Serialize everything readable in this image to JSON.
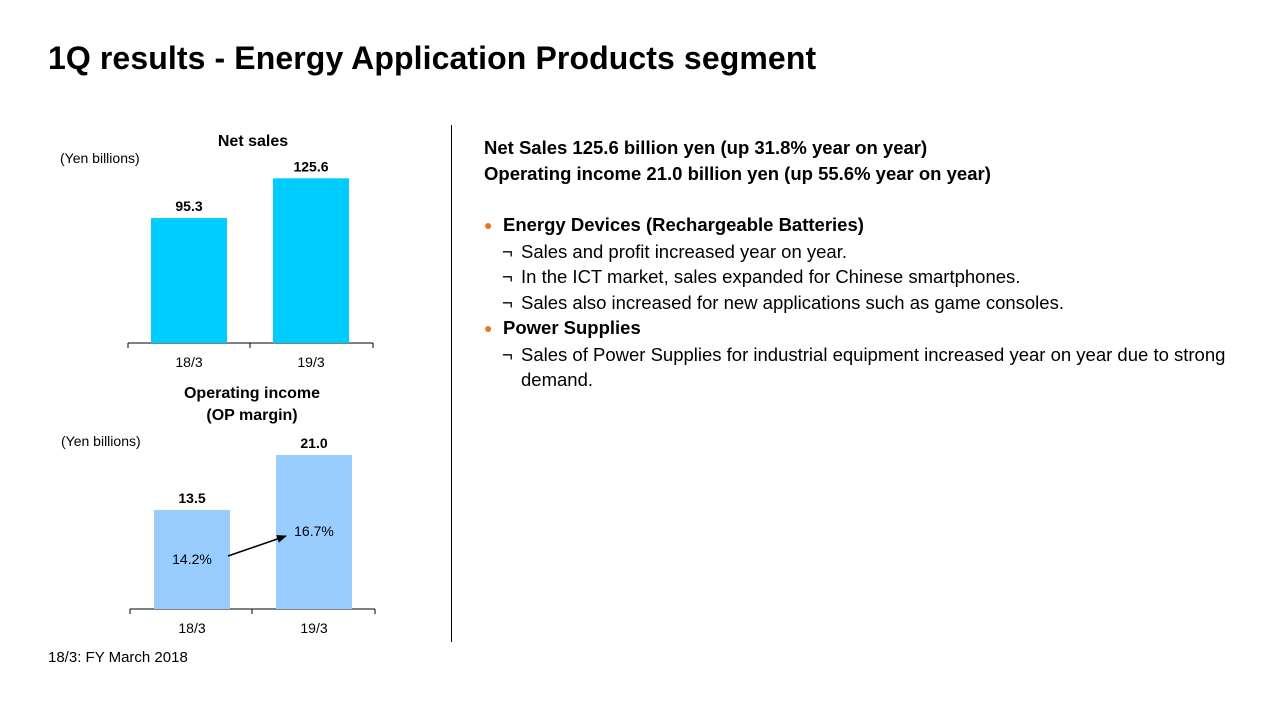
{
  "slide_title": "1Q results - Energy Application Products segment",
  "footnote": "18/3: FY March 2018",
  "colors": {
    "net_sales_bar": "#00ccff",
    "op_income_bar": "#99ccff",
    "bullet": "#e87722"
  },
  "chart_data": [
    {
      "type": "bar",
      "title": "Net sales",
      "unit_label": "(Yen billions)",
      "categories": [
        "18/3",
        "19/3"
      ],
      "values": [
        95.3,
        125.6
      ],
      "data_labels": [
        "95.3",
        "125.6"
      ],
      "ylim": [
        0,
        135
      ],
      "grid": false,
      "legend": "none"
    },
    {
      "type": "bar",
      "title_line1": "Operating income",
      "title_line2": "(OP margin)",
      "unit_label": "(Yen billions)",
      "categories": [
        "18/3",
        "19/3"
      ],
      "values": [
        13.5,
        21.0
      ],
      "data_labels": [
        "13.5",
        "21.0"
      ],
      "margins": [
        "14.2%",
        "16.7%"
      ],
      "ylim": [
        0,
        22.5
      ],
      "grid": false,
      "legend": "none"
    }
  ],
  "summary": {
    "line1": "Net Sales 125.6 billion yen (up 31.8% year on year)",
    "line2": "Operating income 21.0 billion yen (up 55.6% year on year)"
  },
  "sections": [
    {
      "bullet": "●",
      "heading": "Energy Devices (Rechargeable Batteries)",
      "items": [
        {
          "mark": "¬",
          "text": "Sales and profit increased year on year."
        },
        {
          "mark": "¬",
          "text": "In the ICT market, sales expanded for Chinese smartphones."
        },
        {
          "mark": "¬",
          "text": "Sales also increased for new applications such as game consoles."
        }
      ]
    },
    {
      "bullet": "●",
      "heading": "Power Supplies",
      "items": [
        {
          "mark": "¬",
          "text": "Sales of Power Supplies for industrial equipment increased year on year due to strong demand."
        }
      ]
    }
  ]
}
